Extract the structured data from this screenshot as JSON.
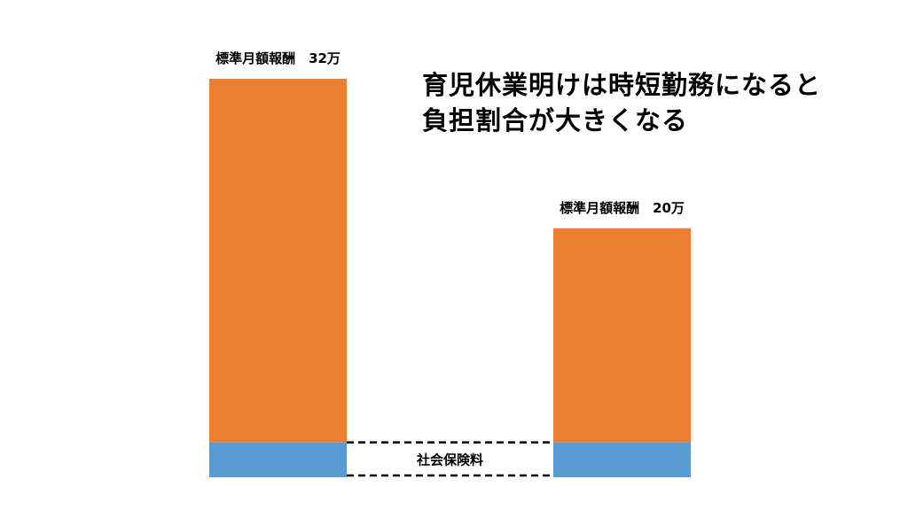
{
  "headline": {
    "line1": "育児休業明けは時短勤務になると",
    "line2": "負担割合が大きくなる"
  },
  "colors": {
    "salary_bar": "#ED7D31",
    "insurance_bar": "#5B9BD5",
    "dashed_line": "#000000"
  },
  "chart_data": {
    "type": "bar",
    "stacked": true,
    "categories": [
      "",
      ""
    ],
    "bar_labels": [
      "標準月額報酬　32万",
      "標準月額報酬　20万"
    ],
    "values_total": [
      32,
      20
    ],
    "series": [
      {
        "name": "社会保険料",
        "values": [
          2.8,
          2.8
        ]
      }
    ],
    "upper_segment_values": [
      29.2,
      17.2
    ],
    "band_annotation": "社会保険料",
    "title": "",
    "xlabel": "",
    "ylabel": "",
    "ylim": [
      0,
      32
    ],
    "grid": false,
    "legend": "none"
  }
}
